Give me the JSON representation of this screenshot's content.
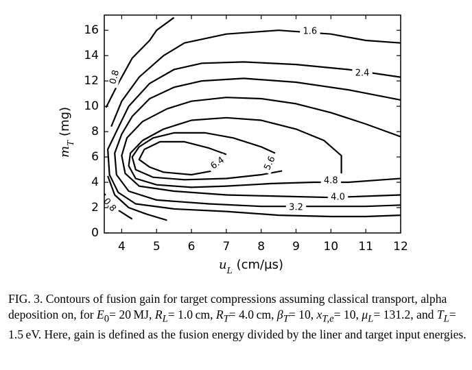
{
  "chart_data": {
    "type": "contour",
    "title": "",
    "xlabel_var": "u",
    "xlabel_sub": "L",
    "xlabel_unit": "(cm/µs)",
    "ylabel_var": "m",
    "ylabel_sub": "T",
    "ylabel_unit": "(mg)",
    "xlim": [
      3.5,
      12
    ],
    "ylim": [
      0,
      17.2
    ],
    "xticks": [
      4,
      5,
      6,
      7,
      8,
      9,
      10,
      11,
      12
    ],
    "yticks": [
      0,
      2,
      4,
      6,
      8,
      10,
      12,
      14,
      16
    ],
    "grid": false,
    "levels": [
      {
        "level": 0.8,
        "segments": [
          [
            [
              3.55,
              9.9
            ],
            [
              3.9,
              11.8
            ],
            [
              4.3,
              13.8
            ],
            [
              4.8,
              15.2
            ],
            [
              5.0,
              16.0
            ],
            [
              5.5,
              17.0
            ]
          ],
          [
            [
              3.5,
              3.1
            ],
            [
              3.9,
              1.8
            ],
            [
              4.3,
              1.1
            ]
          ]
        ]
      },
      {
        "level": 1.6,
        "segments": [
          [
            [
              3.7,
              8.4
            ],
            [
              4.0,
              10.4
            ],
            [
              4.5,
              12.3
            ],
            [
              5.2,
              14.0
            ],
            [
              5.8,
              15.0
            ],
            [
              7.0,
              15.7
            ],
            [
              8.5,
              16.0
            ],
            [
              10.0,
              15.7
            ],
            [
              11.0,
              15.2
            ],
            [
              12.0,
              15.0
            ]
          ],
          [
            [
              3.6,
              4.5
            ],
            [
              3.8,
              3.0
            ],
            [
              4.2,
              2.0
            ],
            [
              4.7,
              1.5
            ],
            [
              5.3,
              1.0
            ]
          ]
        ]
      },
      {
        "level": 2.4,
        "segments": [
          [
            [
              12.0,
              12.3
            ],
            [
              10.5,
              12.9
            ],
            [
              9.0,
              13.3
            ],
            [
              7.5,
              13.5
            ],
            [
              6.3,
              13.4
            ],
            [
              5.5,
              12.9
            ],
            [
              4.8,
              11.8
            ],
            [
              4.2,
              10.0
            ],
            [
              3.9,
              8.3
            ],
            [
              3.6,
              6.6
            ],
            [
              3.65,
              4.6
            ],
            [
              3.9,
              3.2
            ],
            [
              4.4,
              2.3
            ],
            [
              5.5,
              1.9
            ],
            [
              7.0,
              1.7
            ],
            [
              8.5,
              1.4
            ],
            [
              10.0,
              1.3
            ],
            [
              11.0,
              1.3
            ],
            [
              12.0,
              1.4
            ]
          ]
        ]
      },
      {
        "level": 3.2,
        "segments": [
          [
            [
              12.0,
              10.5
            ],
            [
              10.5,
              11.3
            ],
            [
              9.0,
              11.9
            ],
            [
              7.5,
              12.2
            ],
            [
              6.3,
              12.0
            ],
            [
              5.5,
              11.5
            ],
            [
              4.8,
              10.6
            ],
            [
              4.3,
              9.2
            ],
            [
              4.0,
              7.8
            ],
            [
              3.8,
              6.3
            ],
            [
              3.85,
              4.6
            ],
            [
              4.2,
              3.3
            ],
            [
              5.0,
              2.6
            ],
            [
              6.5,
              2.3
            ],
            [
              8.0,
              2.1
            ],
            [
              9.5,
              2.1
            ],
            [
              11.0,
              2.1
            ],
            [
              12.0,
              2.2
            ]
          ]
        ]
      },
      {
        "level": 4.0,
        "segments": [
          [
            [
              12.0,
              7.6
            ],
            [
              11.0,
              8.6
            ],
            [
              10.0,
              9.5
            ],
            [
              9.0,
              10.2
            ],
            [
              8.0,
              10.6
            ],
            [
              7.0,
              10.7
            ],
            [
              6.0,
              10.4
            ],
            [
              5.3,
              9.8
            ],
            [
              4.6,
              8.8
            ],
            [
              4.15,
              7.5
            ],
            [
              4.0,
              6.1
            ],
            [
              4.1,
              4.7
            ],
            [
              4.5,
              3.7
            ],
            [
              5.5,
              3.3
            ],
            [
              7.0,
              3.0
            ],
            [
              8.5,
              2.9
            ],
            [
              10.0,
              2.8
            ],
            [
              11.0,
              2.9
            ],
            [
              12.0,
              3.0
            ]
          ]
        ]
      },
      {
        "level": 4.8,
        "segments": [
          [
            [
              10.3,
              4.7
            ],
            [
              10.3,
              6.1
            ],
            [
              9.8,
              7.3
            ],
            [
              9.0,
              8.2
            ],
            [
              8.0,
              8.9
            ],
            [
              7.0,
              9.1
            ],
            [
              6.0,
              8.9
            ],
            [
              5.2,
              8.2
            ],
            [
              4.6,
              7.3
            ],
            [
              4.25,
              6.3
            ],
            [
              4.2,
              5.3
            ],
            [
              4.4,
              4.3
            ],
            [
              5.0,
              3.8
            ],
            [
              6.0,
              3.6
            ],
            [
              7.0,
              3.7
            ],
            [
              8.3,
              3.9
            ],
            [
              9.5,
              4.0
            ],
            [
              10.5,
              4.0
            ],
            [
              11.5,
              4.2
            ],
            [
              12.0,
              4.3
            ]
          ]
        ]
      },
      {
        "level": 5.6,
        "segments": [
          [
            [
              8.4,
              6.3
            ],
            [
              8.0,
              6.8
            ],
            [
              7.2,
              7.5
            ],
            [
              6.4,
              7.9
            ],
            [
              5.5,
              7.9
            ],
            [
              4.9,
              7.5
            ],
            [
              4.5,
              6.8
            ],
            [
              4.3,
              6.0
            ],
            [
              4.4,
              5.0
            ],
            [
              4.9,
              4.4
            ],
            [
              5.8,
              4.2
            ],
            [
              7.0,
              4.3
            ],
            [
              8.0,
              4.6
            ],
            [
              8.6,
              4.9
            ]
          ]
        ]
      },
      {
        "level": 6.4,
        "segments": [
          [
            [
              7.0,
              6.2
            ],
            [
              6.5,
              6.7
            ],
            [
              5.8,
              7.2
            ],
            [
              5.1,
              7.2
            ],
            [
              4.65,
              6.6
            ],
            [
              4.5,
              5.8
            ],
            [
              4.8,
              5.2
            ],
            [
              5.2,
              4.8
            ],
            [
              6.0,
              4.6
            ],
            [
              6.6,
              4.9
            ]
          ]
        ]
      }
    ],
    "contour_labels": [
      {
        "text": "0.8",
        "x": 3.8,
        "y": 12.3,
        "rotate": -75
      },
      {
        "text": "0.8",
        "x": 3.65,
        "y": 2.2,
        "rotate": 50
      },
      {
        "text": "1.6",
        "x": 9.4,
        "y": 15.9,
        "rotate": 0
      },
      {
        "text": "2.4",
        "x": 10.9,
        "y": 12.6,
        "rotate": 0
      },
      {
        "text": "3.2",
        "x": 9.0,
        "y": 2.0,
        "rotate": 0
      },
      {
        "text": "4.0",
        "x": 10.2,
        "y": 2.8,
        "rotate": 0
      },
      {
        "text": "4.8",
        "x": 10.0,
        "y": 4.1,
        "rotate": 0
      },
      {
        "text": "5.6",
        "x": 8.25,
        "y": 5.5,
        "rotate": -65
      },
      {
        "text": "6.4",
        "x": 6.75,
        "y": 5.5,
        "rotate": -35
      }
    ]
  },
  "caption": {
    "prefix": "FIG. 3. Contours of fusion gain for target compressions assuming classical transport, alpha deposition on, for ",
    "e0_var": "E",
    "e0_sub": "0",
    "e0_val": "= 20 MJ, ",
    "rl_var": "R",
    "rl_sub": "L",
    "rl_val": "= 1.0 cm, ",
    "rt_var": "R",
    "rt_sub": "T",
    "rt_val": "= 4.0 cm,",
    "beta_var": "β",
    "beta_sub": "T",
    "beta_val": "= 10, ",
    "x_var": "x",
    "x_sub": "T,e",
    "x_val": "= 10, ",
    "mu_var": "μ",
    "mu_sub": "L",
    "mu_val": "= 131.2, and ",
    "tl_var": "T",
    "tl_sub": "L",
    "tl_val": "= 1.5 eV. Here, gain is defined as the fusion energy divided by the liner and target input energies."
  }
}
